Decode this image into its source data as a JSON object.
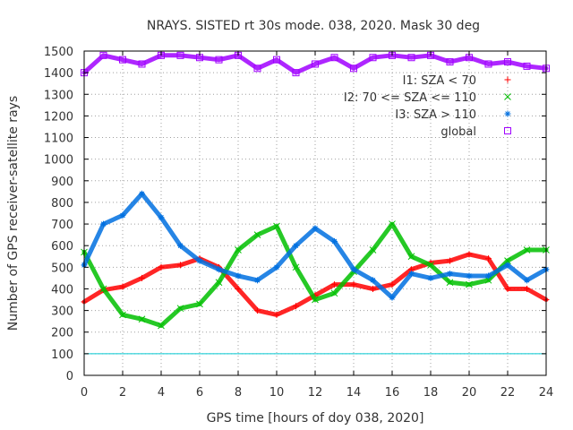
{
  "chart_data": {
    "type": "scatter",
    "title": "NRAYS. SISTED rt 30s mode. 038, 2020. Mask 30 deg",
    "xlabel": "GPS time [hours of doy 038, 2020]",
    "ylabel": "Number of GPS receiver-satellite rays",
    "xlim": [
      0,
      24
    ],
    "ylim": [
      0,
      1500
    ],
    "xticks": [
      0,
      2,
      4,
      6,
      8,
      10,
      12,
      14,
      16,
      18,
      20,
      22,
      24
    ],
    "yticks": [
      0,
      100,
      200,
      300,
      400,
      500,
      600,
      700,
      800,
      900,
      1000,
      1100,
      1200,
      1300,
      1400,
      1500
    ],
    "grid": true,
    "legend_position": "top-right",
    "reference_line": {
      "y": 100,
      "color": "#00c8d0"
    },
    "series": [
      {
        "name": "I1: SZA < 70",
        "color": "#ff0000",
        "marker": "plus",
        "x": [
          0,
          1,
          2,
          3,
          4,
          5,
          6,
          7,
          8,
          9,
          10,
          11,
          12,
          13,
          14,
          15,
          16,
          17,
          18,
          19,
          20,
          21,
          22,
          23,
          24
        ],
        "values": [
          340,
          395,
          410,
          450,
          500,
          510,
          540,
          500,
          400,
          300,
          280,
          320,
          370,
          420,
          420,
          400,
          420,
          490,
          520,
          530,
          560,
          540,
          400,
          400,
          350
        ]
      },
      {
        "name": "I2: 70 <= SZA <= 110",
        "color": "#00c000",
        "marker": "cross",
        "x": [
          0,
          1,
          2,
          3,
          4,
          5,
          6,
          7,
          8,
          9,
          10,
          11,
          12,
          13,
          14,
          15,
          16,
          17,
          18,
          19,
          20,
          21,
          22,
          23,
          24
        ],
        "values": [
          570,
          400,
          280,
          260,
          230,
          310,
          330,
          430,
          580,
          650,
          690,
          500,
          350,
          380,
          480,
          580,
          700,
          550,
          510,
          430,
          420,
          440,
          530,
          580,
          580
        ]
      },
      {
        "name": "I3: SZA > 110",
        "color": "#0070e0",
        "marker": "star",
        "x": [
          0,
          1,
          2,
          3,
          4,
          5,
          6,
          7,
          8,
          9,
          10,
          11,
          12,
          13,
          14,
          15,
          16,
          17,
          18,
          19,
          20,
          21,
          22,
          23,
          24
        ],
        "values": [
          510,
          700,
          740,
          840,
          730,
          600,
          530,
          490,
          460,
          440,
          500,
          600,
          680,
          620,
          490,
          440,
          360,
          470,
          450,
          470,
          460,
          460,
          510,
          440,
          490
        ]
      },
      {
        "name": "global",
        "color": "#a000ff",
        "marker": "square",
        "x": [
          0,
          1,
          2,
          3,
          4,
          5,
          6,
          7,
          8,
          9,
          10,
          11,
          12,
          13,
          14,
          15,
          16,
          17,
          18,
          19,
          20,
          21,
          22,
          23,
          24
        ],
        "values": [
          1400,
          1480,
          1460,
          1440,
          1480,
          1480,
          1470,
          1460,
          1480,
          1420,
          1460,
          1400,
          1440,
          1470,
          1420,
          1470,
          1480,
          1470,
          1480,
          1450,
          1470,
          1440,
          1450,
          1430,
          1420
        ]
      }
    ]
  }
}
